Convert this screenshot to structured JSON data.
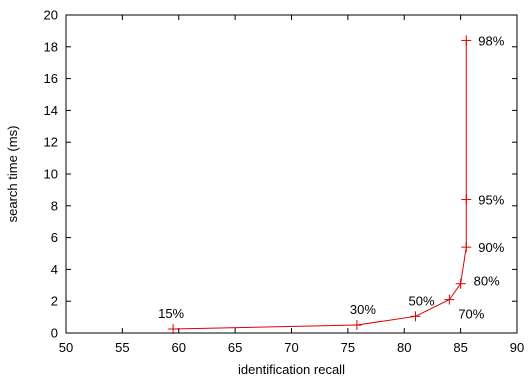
{
  "chart_data": {
    "type": "line",
    "title": "",
    "xlabel": "identification recall",
    "ylabel": "search time (ms)",
    "xlim": [
      50,
      90
    ],
    "ylim": [
      0,
      20
    ],
    "x_ticks": [
      "50",
      "55",
      "60",
      "65",
      "70",
      "75",
      "80",
      "85",
      "90"
    ],
    "y_ticks": [
      "0",
      "2",
      "4",
      "6",
      "8",
      "10",
      "12",
      "14",
      "16",
      "18",
      "20"
    ],
    "grid": false,
    "line_color": "#dd0000",
    "marker": "plus",
    "series": [
      {
        "points": [
          {
            "x": 59.5,
            "y": 0.25,
            "label": "15%"
          },
          {
            "x": 75.8,
            "y": 0.5,
            "label": "30%"
          },
          {
            "x": 81.0,
            "y": 1.05,
            "label": "50%"
          },
          {
            "x": 84.0,
            "y": 2.1,
            "label": "70%"
          },
          {
            "x": 85.0,
            "y": 3.1,
            "label": "80%"
          },
          {
            "x": 85.5,
            "y": 5.4,
            "label": "90%"
          },
          {
            "x": 85.5,
            "y": 8.4,
            "label": "95%"
          },
          {
            "x": 85.5,
            "y": 18.4,
            "label": "98%"
          }
        ]
      }
    ]
  }
}
